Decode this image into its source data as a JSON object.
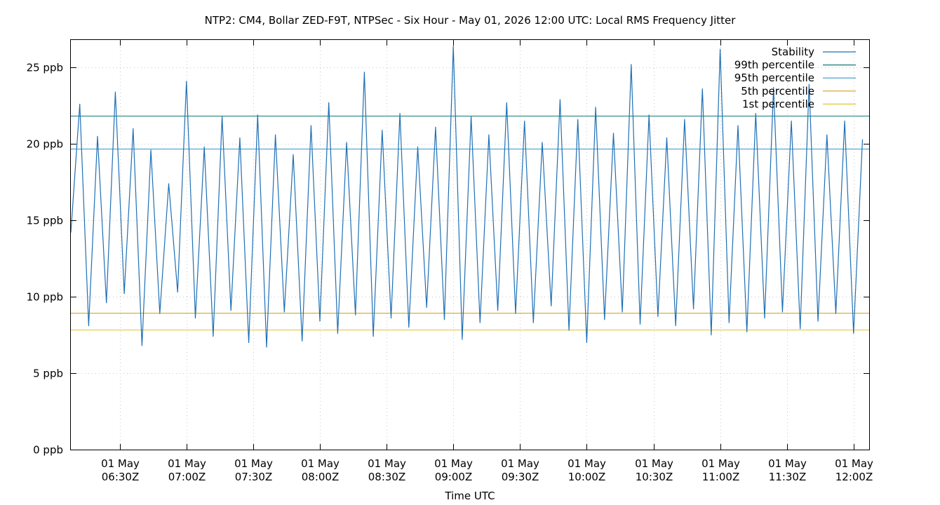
{
  "chart_data": {
    "type": "line",
    "title": "NTP2: CM4, Bollar ZED-F9T, NTPSec - Six Hour - May 01, 2026 12:00 UTC: Local RMS Frequency Jitter",
    "xlabel": "Time UTC",
    "ylabel": "",
    "x_range": [
      "2026-05-01T06:08Z",
      "2026-05-01T12:07Z"
    ],
    "ylim": [
      0,
      26.8
    ],
    "y_ticks": [
      {
        "value": 0,
        "label": "0 ppb"
      },
      {
        "value": 5,
        "label": "5 ppb"
      },
      {
        "value": 10,
        "label": "10 ppb"
      },
      {
        "value": 15,
        "label": "15 ppb"
      },
      {
        "value": 20,
        "label": "20 ppb"
      },
      {
        "value": 25,
        "label": "25 ppb"
      }
    ],
    "x_ticks": [
      {
        "time": "2026-05-01T06:30Z",
        "line1": "01 May",
        "line2": "06:30Z"
      },
      {
        "time": "2026-05-01T07:00Z",
        "line1": "01 May",
        "line2": "07:00Z"
      },
      {
        "time": "2026-05-01T07:30Z",
        "line1": "01 May",
        "line2": "07:30Z"
      },
      {
        "time": "2026-05-01T08:00Z",
        "line1": "01 May",
        "line2": "08:00Z"
      },
      {
        "time": "2026-05-01T08:30Z",
        "line1": "01 May",
        "line2": "08:30Z"
      },
      {
        "time": "2026-05-01T09:00Z",
        "line1": "01 May",
        "line2": "09:00Z"
      },
      {
        "time": "2026-05-01T09:30Z",
        "line1": "01 May",
        "line2": "09:30Z"
      },
      {
        "time": "2026-05-01T10:00Z",
        "line1": "01 May",
        "line2": "10:00Z"
      },
      {
        "time": "2026-05-01T10:30Z",
        "line1": "01 May",
        "line2": "10:30Z"
      },
      {
        "time": "2026-05-01T11:00Z",
        "line1": "01 May",
        "line2": "11:00Z"
      },
      {
        "time": "2026-05-01T11:30Z",
        "line1": "01 May",
        "line2": "11:30Z"
      },
      {
        "time": "2026-05-01T12:00Z",
        "line1": "01 May",
        "line2": "12:00Z"
      }
    ],
    "grid": true,
    "legend_position": "top-right",
    "series": [
      {
        "name": "Stability",
        "kind": "line",
        "color": "#1f6fb4",
        "x": [
          "2026-05-01T06:08Z",
          "2026-05-01T06:12Z",
          "2026-05-01T06:16Z",
          "2026-05-01T06:20Z",
          "2026-05-01T06:24Z",
          "2026-05-01T06:28Z",
          "2026-05-01T06:32Z",
          "2026-05-01T06:36Z",
          "2026-05-01T06:40Z",
          "2026-05-01T06:44Z",
          "2026-05-01T06:48Z",
          "2026-05-01T06:52Z",
          "2026-05-01T06:56Z",
          "2026-05-01T07:00Z",
          "2026-05-01T07:04Z",
          "2026-05-01T07:08Z",
          "2026-05-01T07:12Z",
          "2026-05-01T07:16Z",
          "2026-05-01T07:20Z",
          "2026-05-01T07:24Z",
          "2026-05-01T07:28Z",
          "2026-05-01T07:32Z",
          "2026-05-01T07:36Z",
          "2026-05-01T07:40Z",
          "2026-05-01T07:44Z",
          "2026-05-01T07:48Z",
          "2026-05-01T07:52Z",
          "2026-05-01T07:56Z",
          "2026-05-01T08:00Z",
          "2026-05-01T08:04Z",
          "2026-05-01T08:08Z",
          "2026-05-01T08:12Z",
          "2026-05-01T08:16Z",
          "2026-05-01T08:20Z",
          "2026-05-01T08:24Z",
          "2026-05-01T08:28Z",
          "2026-05-01T08:32Z",
          "2026-05-01T08:36Z",
          "2026-05-01T08:40Z",
          "2026-05-01T08:44Z",
          "2026-05-01T08:48Z",
          "2026-05-01T08:52Z",
          "2026-05-01T08:56Z",
          "2026-05-01T09:00Z",
          "2026-05-01T09:04Z",
          "2026-05-01T09:08Z",
          "2026-05-01T09:12Z",
          "2026-05-01T09:16Z",
          "2026-05-01T09:20Z",
          "2026-05-01T09:24Z",
          "2026-05-01T09:28Z",
          "2026-05-01T09:32Z",
          "2026-05-01T09:36Z",
          "2026-05-01T09:40Z",
          "2026-05-01T09:44Z",
          "2026-05-01T09:48Z",
          "2026-05-01T09:52Z",
          "2026-05-01T09:56Z",
          "2026-05-01T10:00Z",
          "2026-05-01T10:04Z",
          "2026-05-01T10:08Z",
          "2026-05-01T10:12Z",
          "2026-05-01T10:16Z",
          "2026-05-01T10:20Z",
          "2026-05-01T10:24Z",
          "2026-05-01T10:28Z",
          "2026-05-01T10:32Z",
          "2026-05-01T10:36Z",
          "2026-05-01T10:40Z",
          "2026-05-01T10:44Z",
          "2026-05-01T10:48Z",
          "2026-05-01T10:52Z",
          "2026-05-01T10:56Z",
          "2026-05-01T11:00Z",
          "2026-05-01T11:04Z",
          "2026-05-01T11:08Z",
          "2026-05-01T11:12Z",
          "2026-05-01T11:16Z",
          "2026-05-01T11:20Z",
          "2026-05-01T11:24Z",
          "2026-05-01T11:28Z",
          "2026-05-01T11:32Z",
          "2026-05-01T11:36Z",
          "2026-05-01T11:40Z",
          "2026-05-01T11:44Z",
          "2026-05-01T11:48Z",
          "2026-05-01T11:52Z",
          "2026-05-01T11:56Z",
          "2026-05-01T12:00Z",
          "2026-05-01T12:04Z"
        ],
        "y": [
          14.2,
          22.6,
          8.1,
          20.5,
          9.6,
          23.4,
          10.2,
          21.0,
          6.8,
          19.6,
          8.9,
          17.4,
          10.3,
          24.1,
          8.6,
          19.8,
          7.4,
          21.8,
          9.1,
          20.4,
          7.0,
          21.9,
          6.7,
          20.6,
          9.0,
          19.3,
          7.1,
          21.2,
          8.4,
          22.7,
          7.6,
          20.1,
          8.8,
          24.7,
          7.4,
          20.9,
          8.6,
          22.0,
          8.0,
          19.8,
          9.3,
          21.1,
          8.5,
          26.4,
          7.2,
          21.8,
          8.3,
          20.6,
          9.1,
          22.7,
          8.9,
          21.5,
          8.3,
          20.1,
          9.4,
          22.9,
          7.8,
          21.6,
          7.0,
          22.4,
          8.5,
          20.7,
          9.0,
          25.2,
          8.2,
          21.9,
          8.7,
          20.4,
          8.1,
          21.6,
          9.2,
          23.6,
          7.5,
          26.2,
          8.3,
          21.2,
          7.7,
          22.0,
          8.6,
          23.7,
          9.0,
          21.5,
          7.9,
          23.9,
          8.4,
          20.6,
          8.9,
          21.5,
          7.6,
          20.3
        ]
      },
      {
        "name": "99th percentile",
        "kind": "hline",
        "value": 21.85,
        "color": "#0f7c72"
      },
      {
        "name": "95th percentile",
        "kind": "hline",
        "value": 19.7,
        "color": "#3399cc"
      },
      {
        "name": "5th percentile",
        "kind": "hline",
        "value": 8.95,
        "color": "#d4a017"
      },
      {
        "name": "1st percentile",
        "kind": "hline",
        "value": 7.85,
        "color": "#e3c53a"
      }
    ]
  }
}
